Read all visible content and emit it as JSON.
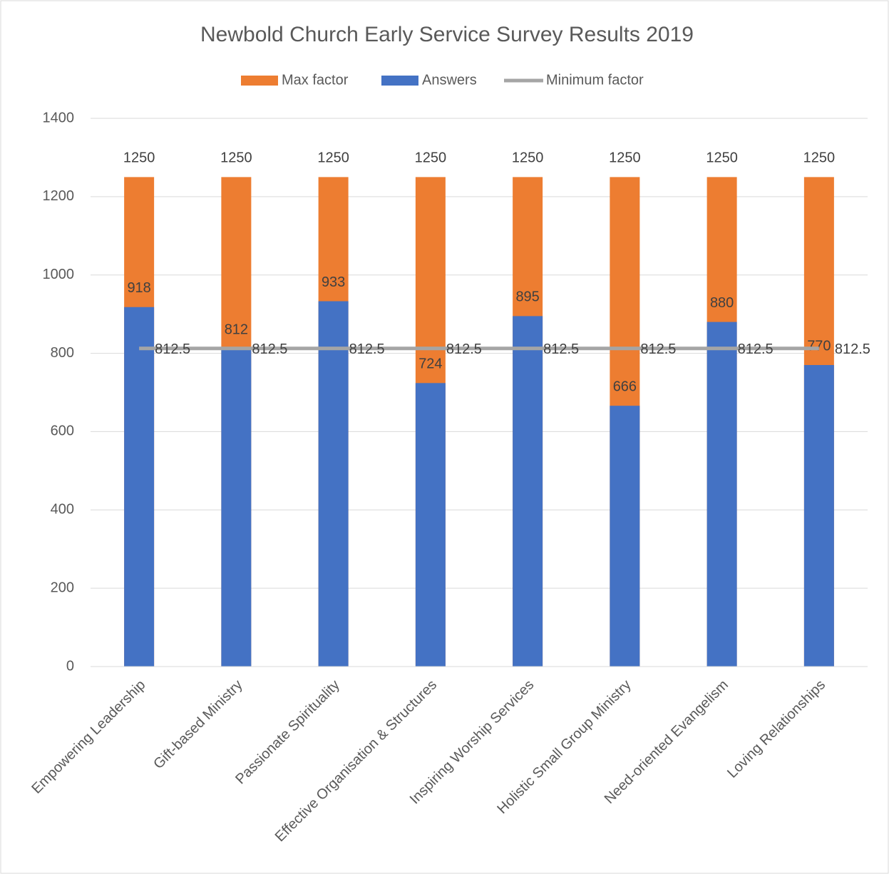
{
  "chart_data": {
    "type": "bar",
    "title": "Newbold Church Early Service Survey Results 2019",
    "categories": [
      "Empowering Leadership",
      "Gift-based Ministry",
      "Passionate Spirituality",
      "Effective Organisation & Structures",
      "Inspiring Worship Services",
      "Holistic Small Group Ministry",
      "Need-oriented Evangelism",
      "Loving Relationships"
    ],
    "series": [
      {
        "name": "Max factor",
        "color": "#ed7d31",
        "values": [
          1250,
          1250,
          1250,
          1250,
          1250,
          1250,
          1250,
          1250
        ]
      },
      {
        "name": "Answers",
        "color": "#4472c4",
        "values": [
          918,
          812,
          933,
          724,
          895,
          666,
          880,
          770
        ]
      },
      {
        "name": "Minimum factor",
        "color": "#a5a5a5",
        "type": "line",
        "values": [
          812.5,
          812.5,
          812.5,
          812.5,
          812.5,
          812.5,
          812.5,
          812.5
        ]
      }
    ],
    "ylim": [
      0,
      1400
    ],
    "yticks": [
      0,
      200,
      400,
      600,
      800,
      1000,
      1200,
      1400
    ],
    "grid": true,
    "legend": "top"
  }
}
